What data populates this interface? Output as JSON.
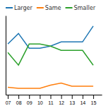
{
  "chart_data": {
    "type": "line",
    "x": [
      2007,
      2008,
      2009,
      2010,
      2011,
      2012,
      2013,
      2014,
      2015
    ],
    "series": [
      {
        "name": "Larger",
        "values": [
          48,
          58,
          44,
          44,
          46,
          50,
          50,
          50,
          65
        ]
      },
      {
        "name": "Same",
        "values": [
          7,
          6,
          6,
          6,
          9,
          11,
          8,
          8,
          8
        ]
      },
      {
        "name": "Smaller",
        "values": [
          40,
          28,
          48,
          48,
          46,
          42,
          42,
          42,
          28
        ]
      }
    ],
    "xlim": [
      2006.8,
      2015.8
    ],
    "xticks": [
      {
        "value": 2007,
        "label": "07"
      },
      {
        "value": 2008,
        "label": "08"
      },
      {
        "value": 2009,
        "label": "09"
      },
      {
        "value": 2010,
        "label": "10"
      },
      {
        "value": 2011,
        "label": "11"
      },
      {
        "value": 2012,
        "label": "12"
      },
      {
        "value": 2013,
        "label": "13"
      },
      {
        "value": 2014,
        "label": "14"
      },
      {
        "value": 2015,
        "label": "15"
      }
    ],
    "ylim": [
      0,
      75
    ],
    "yticks": [],
    "tick_labels": "x",
    "grid": false,
    "legend": "top-left"
  }
}
